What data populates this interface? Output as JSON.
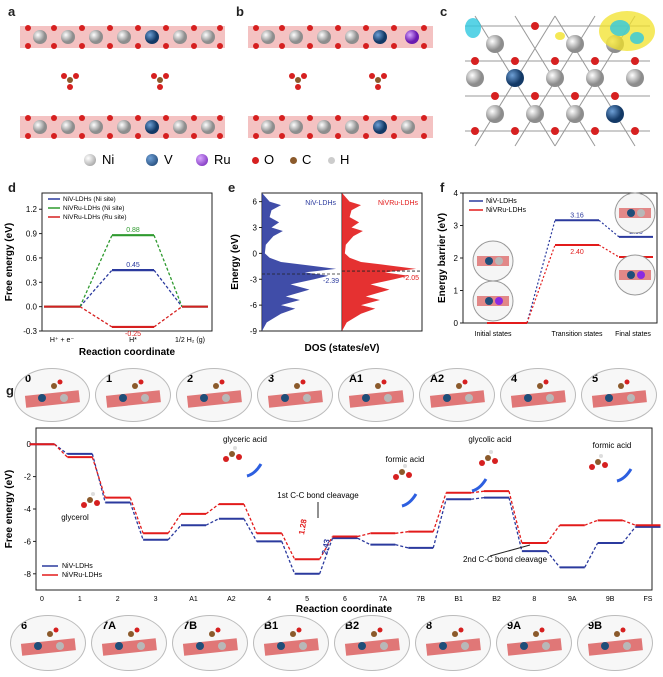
{
  "panel_labels": {
    "a": "a",
    "b": "b",
    "c": "c",
    "d": "d",
    "e": "e",
    "f": "f",
    "g": "g"
  },
  "structure_legend": [
    {
      "symbol": "Ni",
      "color": "#b8b8b8"
    },
    {
      "symbol": "V",
      "color": "#1f4e79"
    },
    {
      "symbol": "Ru",
      "color": "#8a2be2"
    },
    {
      "symbol": "O",
      "color": "#d62020"
    },
    {
      "symbol": "C",
      "color": "#8b5a2b"
    },
    {
      "symbol": "H",
      "color": "#e8e8e8"
    }
  ],
  "chart_data": [
    {
      "id": "d",
      "type": "line",
      "ylabel": "Free energy (eV)",
      "xlabel": "Reaction coordinate",
      "x_ticks": [
        "H⁺ + e⁻",
        "H*",
        "1/2 H₂ (g)"
      ],
      "ylim": [
        -0.3,
        1.4
      ],
      "y_ticks": [
        "-0.3",
        "0.0",
        "0.3",
        "0.6",
        "0.9",
        "1.2"
      ],
      "legend": [
        "NiV-LDHs (Ni site)",
        "NiVRu-LDHs (Ni site)",
        "NiVRu-LDHs (Ru site)"
      ],
      "series": [
        {
          "name": "NiV-LDHs (Ni site)",
          "color": "#2b3a9e",
          "values": [
            0,
            0.45,
            0
          ],
          "label": "0.45"
        },
        {
          "name": "NiVRu-LDHs (Ni site)",
          "color": "#2e9a2e",
          "values": [
            0,
            0.88,
            0
          ],
          "label": "0.88"
        },
        {
          "name": "NiVRu-LDHs (Ru site)",
          "color": "#d62020",
          "values": [
            0,
            -0.25,
            0
          ],
          "label": "-0.25"
        }
      ]
    },
    {
      "id": "e",
      "type": "area",
      "ylabel": "Energy (eV)",
      "xlabel": "DOS (states/eV)",
      "ylim": [
        -9,
        7
      ],
      "y_ticks": [
        "6",
        "3",
        "0",
        "-3",
        "-6",
        "-9"
      ],
      "series": [
        {
          "name": "NiV-LDHs",
          "color": "#2b3a9e",
          "d_band_center": -2.39,
          "label": "-2.39"
        },
        {
          "name": "NiVRu-LDHs",
          "color": "#e21b1b",
          "d_band_center": -2.05,
          "label": "-2.05"
        }
      ]
    },
    {
      "id": "f",
      "type": "line",
      "ylabel": "Energy barrier (eV)",
      "categories": [
        "Initial states",
        "Transition states",
        "Final states"
      ],
      "ylim": [
        0,
        4
      ],
      "y_ticks": [
        "0",
        "1",
        "2",
        "3",
        "4"
      ],
      "legend": [
        "NiV-LDHs",
        "NiVRu-LDHs"
      ],
      "series": [
        {
          "name": "NiV-LDHs",
          "color": "#2b3a9e",
          "values": [
            0,
            3.16,
            2.65
          ],
          "labels": [
            "",
            "3.16",
            "2.65"
          ]
        },
        {
          "name": "NiVRu-LDHs",
          "color": "#e21b1b",
          "values": [
            0,
            2.4,
            2.03
          ],
          "labels": [
            "",
            "2.40",
            "2.03"
          ]
        }
      ]
    },
    {
      "id": "g",
      "type": "line",
      "ylabel": "Free energy (eV)",
      "xlabel": "Reaction coordinate",
      "categories": [
        "0",
        "1",
        "2",
        "3",
        "A1",
        "A2",
        "4",
        "5",
        "6",
        "7A",
        "7B",
        "B1",
        "B2",
        "8",
        "9A",
        "9B",
        "FS"
      ],
      "ylim": [
        -9,
        1
      ],
      "y_ticks": [
        "0",
        "-2",
        "-4",
        "-6",
        "-8"
      ],
      "legend": [
        "NiV-LDHs",
        "NiVRu-LDHs"
      ],
      "series": [
        {
          "name": "NiV-LDHs",
          "color": "#2b3a9e",
          "values": [
            0,
            -0.6,
            -3.6,
            -5.9,
            -5.0,
            -4.6,
            -6.0,
            -8.0,
            -5.8,
            -6.2,
            -6.4,
            -3.4,
            -3.3,
            -6.6,
            -7.6,
            -6.1,
            -5.1
          ]
        },
        {
          "name": "NiVRu-LDHs",
          "color": "#e21b1b",
          "values": [
            0,
            -0.8,
            -3.3,
            -5.5,
            -4.3,
            -3.7,
            -5.5,
            -7.1,
            -5.7,
            -5.5,
            -5.4,
            -3.0,
            -2.9,
            -6.1,
            -5.0,
            -4.7,
            -5.0
          ]
        }
      ],
      "annotations": {
        "glyceric_acid": "glyceric acid",
        "glycerol": "glycerol",
        "formic_acid_1": "formic acid",
        "glycolic_acid": "glycolic acid",
        "formic_acid_2": "formic acid",
        "cc1": "1st C-C bond cleavage",
        "cc2": "2nd C-C bond cleavage",
        "barrier_ru": "1.28",
        "barrier_niv": "2.43"
      }
    }
  ],
  "state_top": [
    "0",
    "1",
    "2",
    "3",
    "A1",
    "A2",
    "4",
    "5"
  ],
  "state_bottom": [
    "6",
    "7A",
    "7B",
    "B1",
    "B2",
    "8",
    "9A",
    "9B"
  ]
}
